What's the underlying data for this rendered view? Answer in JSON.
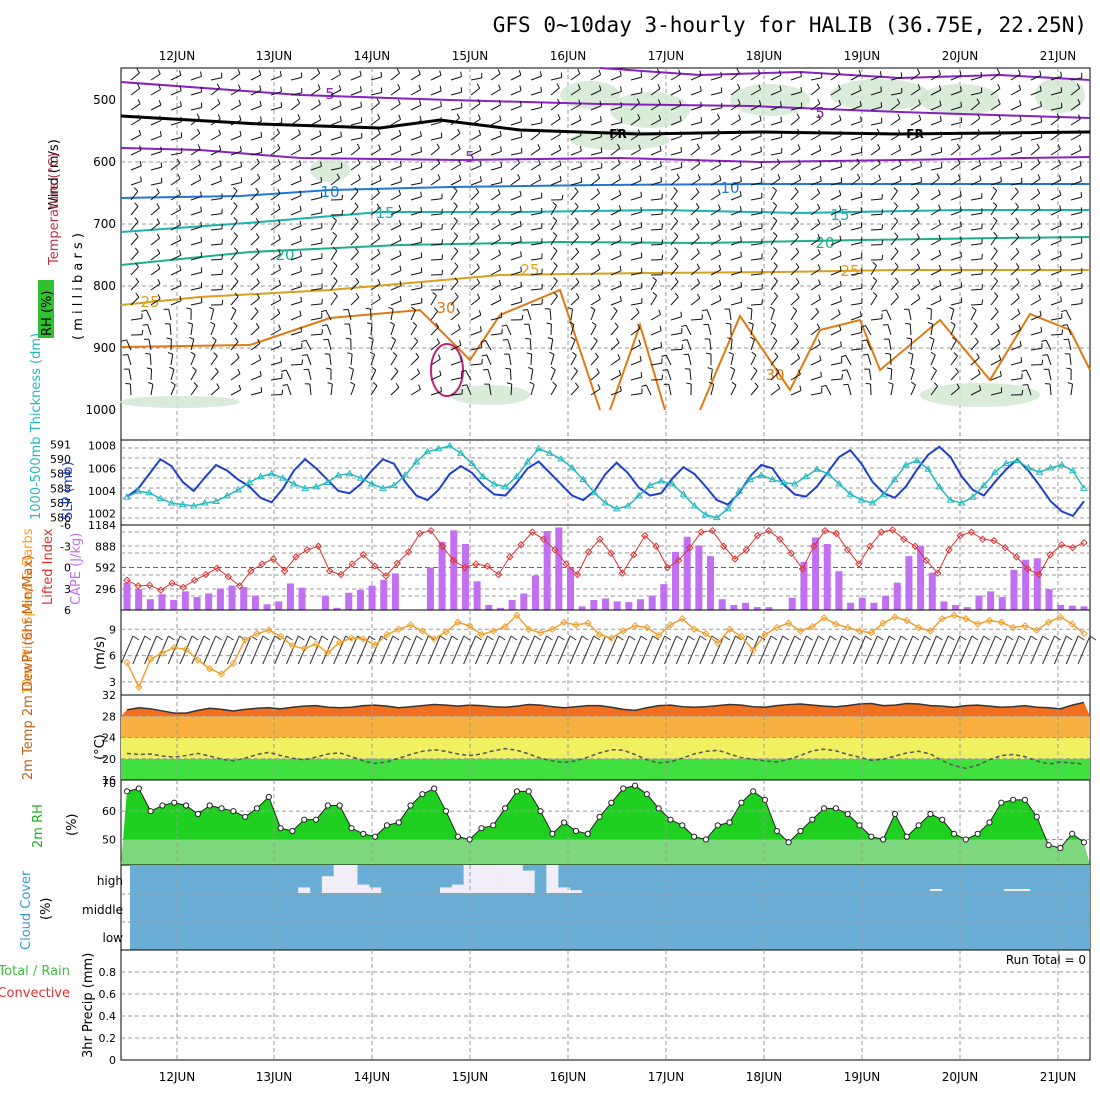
{
  "title": "GFS 0~10day 3-hourly for HALIB (36.75E, 22.25N)",
  "colors": {
    "temp_isotherm_5": "#8b1fc0",
    "temp_isotherm_10": "#1f78d6",
    "temp_isotherm_15": "#19b3b0",
    "temp_isotherm_20": "#1fae8c",
    "temp_isotherm_25": "#d9a020",
    "temp_isotherm_30": "#e07a10",
    "freezing_line": "#000000",
    "slp": "#1f3fcc",
    "thickness": "#25b8c0",
    "cape_bar": "#c070f0",
    "lifted_index": "#e03030",
    "wind_speed": "#f0a030",
    "temp_band_hot": "#f07020",
    "temp_band_warm": "#f8b040",
    "temp_band_mild": "#f0f060",
    "temp_band_cool": "#40e040",
    "rh_fill": "#20d020",
    "cloud_bg": "#6aaed6",
    "cloud_high": "#f2eef8"
  },
  "dates": [
    "12JUN",
    "13JUN",
    "14JUN",
    "15JUN",
    "16JUN",
    "17JUN",
    "18JUN",
    "19JUN",
    "20JUN",
    "21JUN"
  ],
  "panels": {
    "upper": {
      "label_wind": "Wind (m/s)",
      "label_temp": "Temperature (°C)",
      "label_rh": "RH (%)",
      "label_pressure": "( m i l l i b a r s )",
      "yticks": [
        "500",
        "600",
        "700",
        "800",
        "900",
        "1000"
      ],
      "isotherm_labels": [
        "5",
        "5",
        "5",
        "10",
        "10",
        "15",
        "15",
        "20",
        "20",
        "25",
        "25",
        "25",
        "30",
        "30",
        "FR",
        "FR"
      ]
    },
    "slp": {
      "label_thickness": "1000-500mb Thickness (dm)",
      "label_slp": "SLP (mb)",
      "left_ticks": [
        "591",
        "590",
        "589",
        "588",
        "587",
        "586"
      ],
      "right_ticks": [
        "1008",
        "1006",
        "1004",
        "1002"
      ]
    },
    "cape": {
      "label_li": "Lifted Index",
      "label_cape": "CAPE (J/kg)",
      "left_ticks": [
        "-6",
        "-3",
        "0",
        "3",
        "6"
      ],
      "right_ticks": [
        "1184",
        "888",
        "592",
        "296"
      ]
    },
    "wind10m": {
      "label": "10m Wind Speed & Barbs",
      "unit": "(m/s)",
      "yticks": [
        "9",
        "6",
        "3"
      ]
    },
    "temp2m": {
      "label": "2m Temp 2m DewPt (6hr Min/Max)",
      "unit": "(°C)",
      "yticks": [
        "32",
        "28",
        "24",
        "20",
        "16"
      ]
    },
    "rh2m": {
      "label": "2m RH",
      "unit": "(%)",
      "yticks": [
        "70",
        "60",
        "50"
      ]
    },
    "cloud": {
      "label": "Cloud Cover",
      "unit": "(%)",
      "levels": [
        "high",
        "middle",
        "low"
      ]
    },
    "precip": {
      "label": "3hr Precip (mm)",
      "label_total": "Total / Rain",
      "label_conv": "Convective",
      "run_total": "Run Total = 0",
      "yticks": [
        "0.8",
        "0.6",
        "0.4",
        "0.2",
        "0"
      ]
    }
  },
  "chart_data": [
    {
      "type": "line",
      "name": "slp",
      "ylabel": "SLP (mb)",
      "ylim": [
        1001,
        1008.5
      ],
      "values": [
        1003.5,
        1004.2,
        1005.5,
        1006.8,
        1006.2,
        1004.8,
        1004.0,
        1005.2,
        1006.3,
        1005.8,
        1005.0,
        1004.4,
        1003.4,
        1003.0,
        1004.2,
        1005.8,
        1006.8,
        1006.0,
        1005.0,
        1004.0,
        1003.8,
        1004.6,
        1005.8,
        1006.8,
        1006.4,
        1004.8,
        1003.6,
        1003.2,
        1004.1,
        1005.5,
        1006.2,
        1005.6,
        1004.5,
        1003.7,
        1003.6,
        1004.7,
        1006.0,
        1006.6,
        1005.6,
        1004.6,
        1003.6,
        1003.2,
        1004.0,
        1005.5,
        1006.5,
        1005.6,
        1004.3,
        1003.6,
        1003.8,
        1005.1,
        1006.1,
        1005.5,
        1004.4,
        1003.2,
        1002.8,
        1003.8,
        1005.3,
        1006.3,
        1006.0,
        1004.6,
        1003.7,
        1003.5,
        1004.4,
        1005.7,
        1007.0,
        1007.6,
        1006.4,
        1004.8,
        1003.8,
        1003.4,
        1004.4,
        1005.9,
        1007.2,
        1007.9,
        1007.0,
        1005.3,
        1004.1,
        1003.6,
        1004.8,
        1005.9,
        1006.8,
        1005.8,
        1004.5,
        1003.1,
        1002.2,
        1001.8,
        1003.1
      ]
    },
    {
      "type": "line",
      "name": "thickness",
      "ylabel": "1000-500mb Thickness (dm)",
      "ylim": [
        585.5,
        591.3
      ],
      "values": [
        587.4,
        587.8,
        587.7,
        587.3,
        587.0,
        586.9,
        586.8,
        587.0,
        587.1,
        587.5,
        587.9,
        588.4,
        588.8,
        589.0,
        588.7,
        588.3,
        588.0,
        588.1,
        588.4,
        588.9,
        589.0,
        588.7,
        588.3,
        588.0,
        588.2,
        588.9,
        589.8,
        590.5,
        590.7,
        590.9,
        590.4,
        589.7,
        588.8,
        588.3,
        588.1,
        588.8,
        589.8,
        590.7,
        590.4,
        590.0,
        589.4,
        588.6,
        587.7,
        587.0,
        586.6,
        586.8,
        587.5,
        588.2,
        588.5,
        588.3,
        587.6,
        586.8,
        586.2,
        586.0,
        586.6,
        587.8,
        588.6,
        588.9,
        588.6,
        588.4,
        588.3,
        588.8,
        589.3,
        589.0,
        588.3,
        587.6,
        587.2,
        587.0,
        587.6,
        588.6,
        589.6,
        589.9,
        589.3,
        588.1,
        587.2,
        587.0,
        587.4,
        588.2,
        589.1,
        589.7,
        589.9,
        589.4,
        589.1,
        589.4,
        589.6,
        589.2,
        588.0
      ]
    },
    {
      "type": "bar",
      "name": "cape",
      "ylabel": "CAPE (J/kg)",
      "ylim": [
        0,
        1184
      ],
      "values": [
        380,
        290,
        150,
        220,
        140,
        260,
        180,
        230,
        300,
        340,
        320,
        200,
        80,
        120,
        370,
        310,
        0,
        200,
        30,
        240,
        280,
        340,
        420,
        510,
        0,
        0,
        590,
        950,
        1110,
        920,
        400,
        70,
        30,
        140,
        230,
        480,
        1100,
        1150,
        590,
        50,
        140,
        160,
        120,
        110,
        150,
        200,
        360,
        810,
        1020,
        900,
        750,
        150,
        70,
        100,
        40,
        40,
        0,
        170,
        670,
        1010,
        920,
        540,
        100,
        170,
        100,
        200,
        380,
        750,
        890,
        520,
        120,
        70,
        40,
        200,
        260,
        180,
        560,
        700,
        720,
        290,
        70,
        60,
        50
      ]
    },
    {
      "type": "line",
      "name": "lifted_index",
      "ylabel": "Lifted Index",
      "ylim": [
        -6,
        6
      ],
      "values": [
        1.8,
        2.6,
        2.5,
        3.2,
        2.2,
        2.8,
        1.8,
        1.0,
        0.1,
        1.3,
        2.6,
        0.5,
        -0.5,
        -1.2,
        0.5,
        -1.5,
        -2.5,
        -3.0,
        0.5,
        1.0,
        -0.5,
        -1.8,
        -0.2,
        1.2,
        -0.6,
        -2.2,
        -4.8,
        -5.2,
        -3.0,
        -1.0,
        0.0,
        -0.5,
        -0.2,
        1.0,
        -1.5,
        -3.2,
        -5.0,
        -4.0,
        -2.5,
        -0.5,
        1.0,
        -2.2,
        -4.0,
        -2.0,
        0.8,
        -1.8,
        -4.5,
        -3.0,
        0.0,
        -1.0,
        -2.8,
        -5.0,
        -5.2,
        -3.0,
        -1.2,
        -2.5,
        -4.5,
        -5.2,
        -4.0,
        -2.0,
        0.2,
        -3.0,
        -5.2,
        -4.8,
        -2.5,
        -0.5,
        -3.0,
        -5.0,
        -5.3,
        -4.0,
        -3.0,
        -1.0,
        0.8,
        -2.5,
        -4.5,
        -5.0,
        -4.0,
        -3.8,
        -2.8,
        -1.5,
        0.2,
        1.0,
        -1.8,
        -3.2,
        -2.8,
        -3.5
      ]
    },
    {
      "type": "line",
      "name": "wind_speed_10m",
      "ylabel": "(m/s)",
      "ylim": [
        1.5,
        11.2
      ],
      "values": [
        5.2,
        2.4,
        5.6,
        6.3,
        6.9,
        6.7,
        5.5,
        4.5,
        3.9,
        5.1,
        7.8,
        8.5,
        8.9,
        8.2,
        7.1,
        6.8,
        7.3,
        6.3,
        7.5,
        8.0,
        7.9,
        7.2,
        8.4,
        9.0,
        9.5,
        8.8,
        7.9,
        8.7,
        9.8,
        9.4,
        8.4,
        8.8,
        9.3,
        10.6,
        9.0,
        8.6,
        9.0,
        9.8,
        9.5,
        9.7,
        8.4,
        8.0,
        8.8,
        9.4,
        9.2,
        8.3,
        9.5,
        10.2,
        9.0,
        8.5,
        7.4,
        9.0,
        8.2,
        6.6,
        8.4,
        9.2,
        9.7,
        8.8,
        9.3,
        10.3,
        9.6,
        9.2,
        8.8,
        8.6,
        9.7,
        10.4,
        10.0,
        9.2,
        8.8,
        10.2,
        10.6,
        10.2,
        9.6,
        10.0,
        9.8,
        9.2,
        9.4,
        8.9,
        9.8,
        10.4,
        9.6,
        8.5
      ]
    },
    {
      "type": "area",
      "name": "temp_2m",
      "ylabel": "(°C)",
      "ylim": [
        16,
        32
      ],
      "values": [
        29.2,
        29.6,
        29.4,
        29.0,
        28.6,
        28.6,
        29.1,
        29.5,
        29.3,
        29.0,
        29.3,
        29.5,
        29.6,
        29.4,
        29.7,
        29.9,
        30.0,
        29.7,
        29.6,
        29.7,
        30.0,
        30.1,
        29.9,
        29.6,
        29.8,
        30.0,
        30.2,
        30.1,
        29.9,
        30.1,
        30.0,
        29.8,
        29.7,
        29.9,
        30.2,
        30.1,
        29.8,
        29.6,
        29.8,
        30.0,
        30.0,
        29.7,
        29.3,
        29.1,
        29.6,
        30.0,
        30.1,
        29.8,
        29.7,
        29.8,
        30.0,
        30.2,
        30.1,
        29.8,
        29.7,
        30.0,
        30.2,
        30.3,
        30.1,
        29.9,
        29.8,
        30.0,
        30.3,
        30.4,
        30.0,
        30.1,
        30.4,
        30.3,
        30.0,
        29.9,
        29.7,
        30.0,
        30.1,
        29.9,
        29.7,
        29.8,
        30.0,
        29.7,
        29.6,
        29.4,
        30.1,
        30.6
      ]
    },
    {
      "type": "line",
      "name": "dewpoint_2m",
      "ylabel": "(°C)",
      "ylim": [
        16,
        32
      ],
      "values": [
        21.0,
        20.8,
        20.9,
        20.5,
        20.3,
        20.6,
        21.0,
        20.5,
        19.9,
        19.6,
        20.1,
        20.8,
        21.2,
        20.6,
        20.1,
        19.8,
        20.3,
        20.9,
        21.1,
        20.4,
        19.6,
        19.1,
        19.4,
        20.1,
        20.8,
        21.4,
        21.7,
        21.4,
        20.9,
        20.6,
        20.9,
        21.5,
        21.9,
        21.6,
        20.9,
        20.1,
        19.6,
        19.3,
        19.6,
        20.3,
        21.1,
        21.7,
        21.6,
        20.8,
        19.8,
        19.2,
        19.4,
        20.1,
        20.9,
        21.4,
        21.6,
        20.9,
        20.2,
        19.9,
        19.6,
        19.4,
        19.9,
        20.6,
        21.5,
        21.8,
        21.5,
        20.8,
        20.3,
        19.7,
        19.9,
        20.5,
        21.1,
        21.4,
        20.9,
        19.6,
        18.7,
        18.2,
        18.8,
        19.8,
        20.6,
        20.8,
        20.4,
        19.6,
        19.0,
        19.4,
        19.2,
        19.0
      ]
    },
    {
      "type": "area",
      "name": "rh_2m",
      "ylabel": "(%)",
      "ylim": [
        41,
        71
      ],
      "values": [
        67,
        68,
        60,
        62,
        63,
        62,
        59,
        62,
        61,
        60,
        58,
        61,
        65,
        54,
        53,
        57,
        57,
        62,
        62,
        54,
        52,
        51,
        55,
        56,
        62,
        66,
        68,
        60,
        51,
        50,
        54,
        55,
        61,
        67,
        67,
        60,
        52,
        56,
        53,
        52,
        58,
        63,
        68,
        69,
        66,
        61,
        57,
        55,
        51,
        50,
        55,
        56,
        63,
        67,
        64,
        53,
        49,
        53,
        57,
        61,
        61,
        59,
        55,
        51,
        50,
        59,
        51,
        55,
        59,
        57,
        52,
        50,
        52,
        56,
        63,
        64,
        64,
        58,
        48,
        47,
        52,
        49
      ]
    },
    {
      "type": "bar",
      "name": "cloud_cover_high",
      "levels": [
        "high",
        "middle",
        "low"
      ],
      "values": [
        0,
        0,
        0,
        0,
        0,
        0,
        0,
        0,
        0,
        0,
        0,
        0,
        0,
        0,
        0,
        20,
        0,
        60,
        100,
        100,
        30,
        20,
        0,
        0,
        0,
        0,
        0,
        20,
        30,
        100,
        100,
        100,
        100,
        100,
        80,
        0,
        100,
        20,
        10,
        0,
        0,
        0,
        0,
        0,
        0,
        0,
        0,
        0,
        0,
        0,
        0,
        0,
        0,
        0,
        0,
        0,
        0,
        0,
        0,
        0,
        0,
        0,
        0,
        0,
        0,
        0,
        0,
        0,
        0,
        0,
        0,
        0,
        0,
        0,
        0,
        0,
        0,
        0,
        0,
        0,
        0,
        0
      ]
    },
    {
      "type": "bar",
      "name": "precip_3hr",
      "ylabel": "3hr Precip (mm)",
      "ylim": [
        0,
        1
      ],
      "values": [
        0,
        0,
        0,
        0,
        0,
        0,
        0,
        0,
        0,
        0,
        0,
        0,
        0,
        0,
        0,
        0,
        0,
        0,
        0,
        0,
        0,
        0,
        0,
        0,
        0,
        0,
        0,
        0,
        0,
        0,
        0,
        0,
        0,
        0,
        0,
        0,
        0,
        0,
        0,
        0,
        0,
        0,
        0,
        0,
        0,
        0,
        0,
        0,
        0,
        0,
        0,
        0,
        0,
        0,
        0,
        0,
        0,
        0,
        0,
        0,
        0,
        0,
        0,
        0,
        0,
        0,
        0,
        0,
        0,
        0,
        0,
        0,
        0,
        0,
        0,
        0,
        0,
        0,
        0,
        0,
        0,
        0
      ]
    }
  ]
}
